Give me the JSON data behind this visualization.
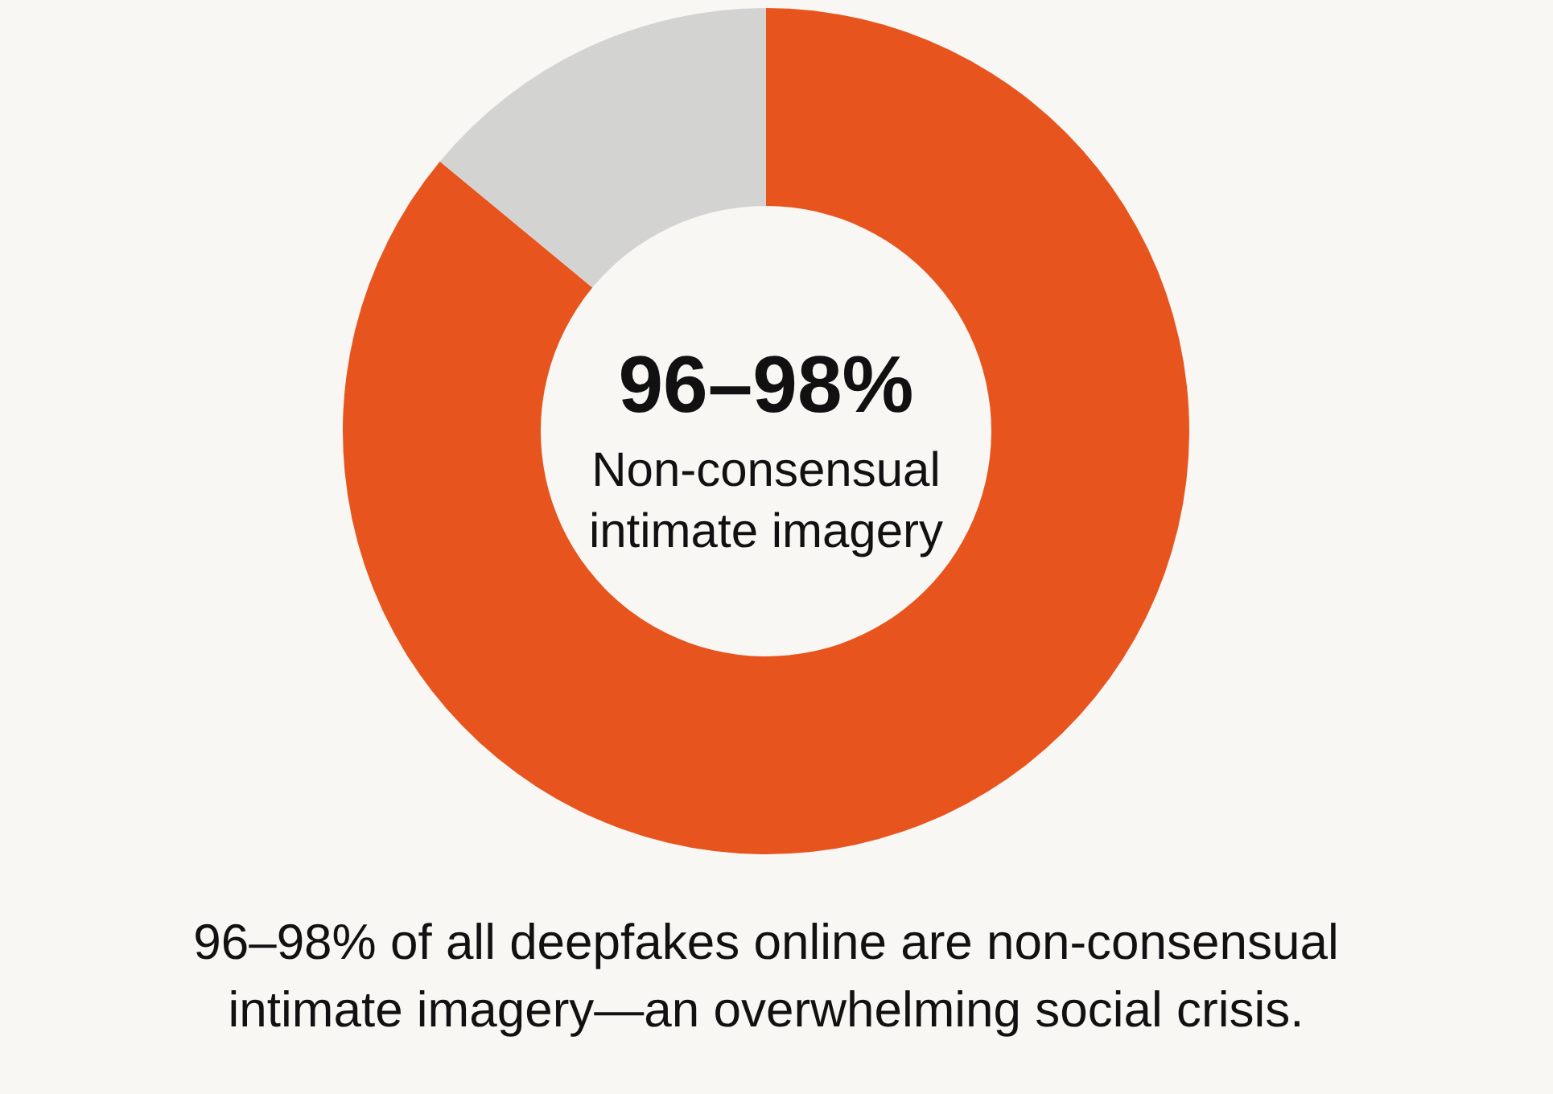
{
  "chart_data": {
    "type": "donut",
    "categories": [
      null,
      null
    ],
    "values": [
      86,
      14
    ],
    "colors": [
      "#e8541e",
      "#d3d3d1"
    ],
    "annotations": [
      "96–98%",
      "Non-consensual intimate imagery",
      "96–98% of all deepfakes online are non-consensual intimate imagery—an overwhelming social crisis."
    ]
  }
}
